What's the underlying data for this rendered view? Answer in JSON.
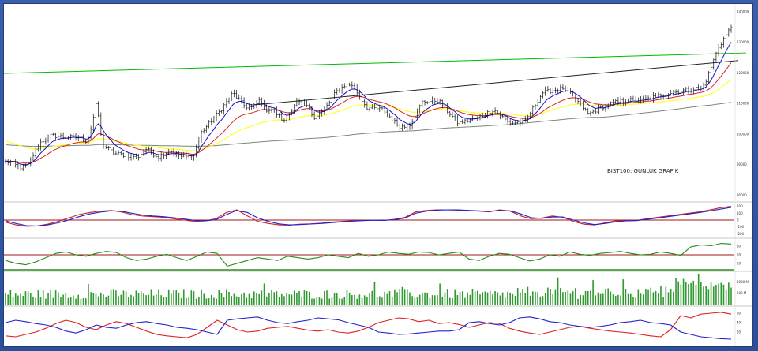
{
  "chart_data": [
    {
      "type": "line",
      "panel": "price",
      "annotation": "BIST100: GUNLUK GRAFIK",
      "y_ticks": [
        "140000",
        "130000",
        "120000",
        "110000",
        "100000",
        "90000",
        "80000"
      ],
      "ylim": [
        78000,
        142000
      ],
      "n_bars": 290,
      "price_anchors": [
        [
          0,
          91000
        ],
        [
          10,
          90500
        ],
        [
          20,
          89000
        ],
        [
          30,
          89500
        ],
        [
          35,
          92000
        ],
        [
          45,
          97000
        ],
        [
          60,
          99500
        ],
        [
          75,
          99000
        ],
        [
          95,
          98800
        ],
        [
          105,
          97500
        ],
        [
          110,
          101500
        ],
        [
          117,
          109800
        ],
        [
          121,
          104000
        ],
        [
          124,
          96500
        ],
        [
          140,
          93500
        ],
        [
          170,
          92500
        ],
        [
          180,
          95000
        ],
        [
          195,
          92500
        ],
        [
          210,
          94500
        ],
        [
          225,
          92600
        ],
        [
          240,
          92500
        ],
        [
          250,
          100500
        ],
        [
          275,
          108000
        ],
        [
          290,
          113400
        ],
        [
          305,
          109000
        ],
        [
          315,
          108500
        ],
        [
          325,
          111500
        ],
        [
          330,
          108000
        ],
        [
          340,
          108000
        ],
        [
          355,
          104000
        ],
        [
          370,
          110500
        ],
        [
          385,
          109000
        ],
        [
          392,
          105500
        ],
        [
          405,
          107500
        ],
        [
          420,
          113500
        ],
        [
          432,
          116000
        ],
        [
          441,
          116000
        ],
        [
          460,
          108500
        ],
        [
          480,
          108000
        ],
        [
          500,
          102500
        ],
        [
          512,
          102200
        ],
        [
          530,
          110500
        ],
        [
          550,
          111000
        ],
        [
          575,
          103500
        ],
        [
          600,
          105200
        ],
        [
          620,
          108000
        ],
        [
          640,
          103500
        ],
        [
          660,
          104000
        ],
        [
          682,
          113500
        ],
        [
          708,
          115000
        ],
        [
          722,
          112000
        ],
        [
          740,
          106500
        ],
        [
          755,
          108500
        ],
        [
          770,
          110000
        ],
        [
          790,
          111000
        ],
        [
          810,
          111000
        ],
        [
          835,
          113000
        ],
        [
          855,
          114000
        ],
        [
          880,
          115000
        ],
        [
          884,
          114800
        ],
        [
          890,
          118000
        ],
        [
          905,
          128500
        ],
        [
          915,
          132500
        ],
        [
          925,
          136500
        ]
      ],
      "series": [
        {
          "color": "#1010cc",
          "period": 8
        },
        {
          "color": "#dd2222",
          "period": 22
        },
        {
          "color": "#ffff33",
          "period": 50
        },
        {
          "color": "#778877",
          "period": 200
        }
      ],
      "trendlines": [
        {
          "color": "#00bb00",
          "from": [
            0,
            119800
          ],
          "to": [
            940,
            126500
          ]
        },
        {
          "color": "#222222",
          "from": [
            318,
            109500
          ],
          "to": [
            930,
            124000
          ]
        }
      ]
    },
    {
      "type": "line",
      "panel": "oscillator",
      "y_ticks": [
        "200",
        "100",
        "0",
        "-100",
        "-200"
      ],
      "hlines": [
        0
      ],
      "series": [
        {
          "color": "#cc2222",
          "values": [
            -30,
            -70,
            -90,
            -85,
            -60,
            -20,
            30,
            80,
            110,
            130,
            140,
            120,
            80,
            60,
            50,
            40,
            20,
            0,
            -20,
            -10,
            20,
            110,
            150,
            60,
            -20,
            -50,
            -70,
            -75,
            -60,
            -55,
            -45,
            -30,
            -20,
            -10,
            -5,
            0,
            -5,
            10,
            40,
            120,
            140,
            150,
            150,
            145,
            140,
            130,
            120,
            150,
            130,
            60,
            20,
            30,
            60,
            40,
            -20,
            -60,
            -70,
            -40,
            -10,
            -10,
            -5,
            20,
            40,
            60,
            80,
            100,
            120,
            150,
            180,
            200
          ]
        },
        {
          "color": "#2222cc",
          "values": [
            -10,
            -50,
            -80,
            -85,
            -70,
            -40,
            0,
            50,
            90,
            115,
            135,
            130,
            100,
            75,
            60,
            50,
            35,
            15,
            -5,
            -10,
            5,
            80,
            140,
            110,
            30,
            -20,
            -55,
            -70,
            -65,
            -58,
            -50,
            -38,
            -25,
            -15,
            -8,
            -2,
            -3,
            5,
            30,
            100,
            130,
            145,
            150,
            148,
            142,
            135,
            125,
            140,
            135,
            90,
            35,
            25,
            45,
            45,
            0,
            -40,
            -65,
            -50,
            -25,
            -12,
            -8,
            10,
            30,
            50,
            70,
            90,
            110,
            135,
            160,
            185
          ]
        }
      ]
    },
    {
      "type": "line",
      "panel": "indicator",
      "y_ticks": [
        "80",
        "50",
        "20"
      ],
      "hlines": [
        50
      ],
      "series": [
        {
          "color": "#2a8a1a",
          "values": [
            30,
            20,
            15,
            25,
            40,
            55,
            60,
            50,
            45,
            55,
            62,
            58,
            40,
            30,
            35,
            45,
            52,
            40,
            30,
            45,
            60,
            55,
            10,
            20,
            30,
            40,
            35,
            30,
            45,
            40,
            35,
            40,
            50,
            45,
            40,
            55,
            45,
            50,
            60,
            55,
            52,
            60,
            58,
            50,
            55,
            60,
            35,
            30,
            45,
            55,
            52,
            40,
            28,
            35,
            50,
            45,
            60,
            52,
            48,
            55,
            58,
            62,
            55,
            50,
            52,
            60,
            55,
            48,
            78,
            85,
            82,
            90,
            88
          ]
        }
      ]
    },
    {
      "type": "bar",
      "panel": "volume",
      "y_ticks": [
        "1000 M",
        "500 M"
      ]
    },
    {
      "type": "line",
      "panel": "directional",
      "y_ticks": [
        "60",
        "40",
        "20"
      ],
      "series": [
        {
          "color": "#dd2222",
          "values": [
            12,
            10,
            15,
            20,
            28,
            38,
            45,
            40,
            30,
            25,
            35,
            42,
            38,
            30,
            22,
            15,
            12,
            10,
            8,
            15,
            30,
            45,
            35,
            25,
            20,
            22,
            28,
            30,
            32,
            28,
            24,
            22,
            25,
            20,
            18,
            22,
            30,
            40,
            45,
            50,
            48,
            42,
            45,
            38,
            40,
            36,
            30,
            35,
            40,
            38,
            28,
            22,
            18,
            15,
            20,
            25,
            30,
            32,
            28,
            25,
            22,
            20,
            18,
            15,
            12,
            10,
            25,
            55,
            50,
            58,
            60,
            62,
            58
          ]
        },
        {
          "color": "#2222cc",
          "values": [
            40,
            45,
            42,
            38,
            35,
            30,
            22,
            18,
            25,
            35,
            30,
            28,
            35,
            40,
            42,
            38,
            35,
            30,
            28,
            25,
            20,
            15,
            45,
            48,
            50,
            52,
            45,
            40,
            38,
            42,
            45,
            50,
            48,
            46,
            40,
            35,
            30,
            20,
            18,
            15,
            16,
            18,
            20,
            22,
            22,
            25,
            40,
            42,
            38,
            35,
            40,
            50,
            52,
            48,
            42,
            40,
            35,
            32,
            30,
            32,
            35,
            40,
            42,
            45,
            40,
            38,
            35,
            20,
            15,
            10,
            8,
            6,
            5
          ]
        }
      ]
    }
  ]
}
